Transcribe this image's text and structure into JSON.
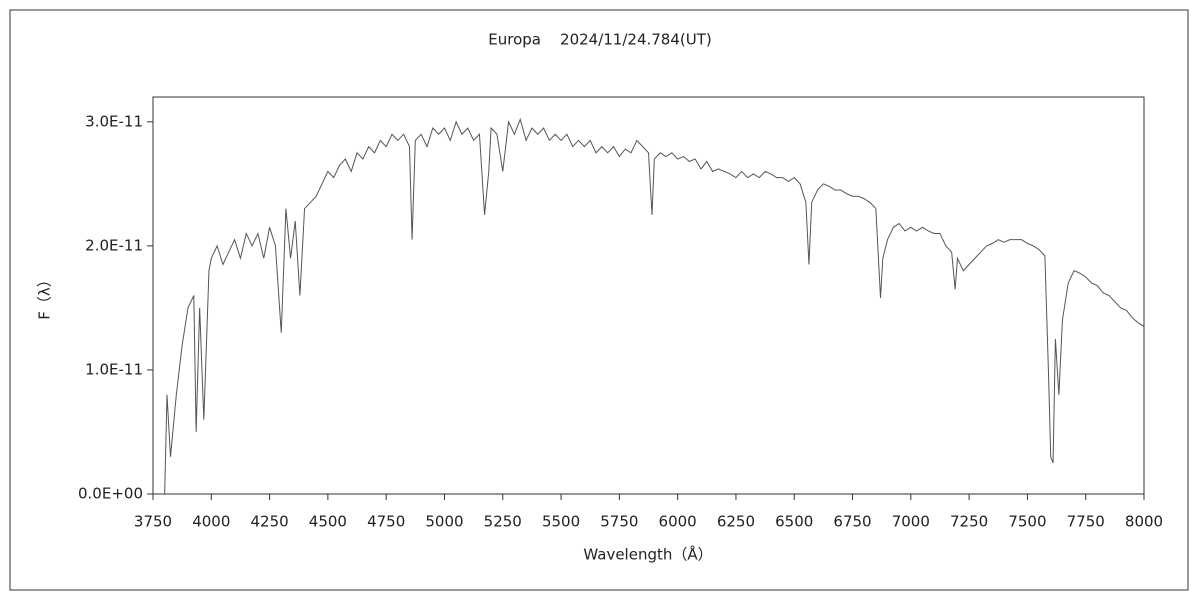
{
  "chart_data": {
    "type": "line",
    "title": "Europa    2024/11/24.784(UT)",
    "x_label": "Wavelength（Å）",
    "y_label": "F（λ）",
    "color": "#555555",
    "xlim": [
      3750,
      8000
    ],
    "ylim": [
      0,
      3.2e-11
    ],
    "xticks": [
      3750,
      4000,
      4250,
      4500,
      4750,
      5000,
      5250,
      5500,
      5750,
      6000,
      6250,
      6500,
      6750,
      7000,
      7250,
      7500,
      7750,
      8000
    ],
    "yticks": [
      {
        "value": 0,
        "label": "0.0E+00"
      },
      {
        "value": 1e-11,
        "label": "1.0E-11"
      },
      {
        "value": 2e-11,
        "label": "2.0E-11"
      },
      {
        "value": 3e-11,
        "label": "3.0E-11"
      }
    ],
    "x": [
      3800,
      3810,
      3825,
      3850,
      3875,
      3900,
      3925,
      3935,
      3950,
      3968,
      3990,
      4000,
      4025,
      4050,
      4075,
      4100,
      4125,
      4150,
      4175,
      4200,
      4225,
      4250,
      4275,
      4300,
      4320,
      4340,
      4360,
      4380,
      4400,
      4425,
      4450,
      4475,
      4500,
      4525,
      4550,
      4575,
      4600,
      4625,
      4650,
      4675,
      4700,
      4725,
      4750,
      4775,
      4800,
      4825,
      4850,
      4861,
      4875,
      4900,
      4925,
      4950,
      4975,
      5000,
      5025,
      5050,
      5075,
      5100,
      5125,
      5150,
      5172,
      5190,
      5200,
      5225,
      5250,
      5275,
      5300,
      5325,
      5350,
      5375,
      5400,
      5425,
      5450,
      5475,
      5500,
      5525,
      5550,
      5575,
      5600,
      5625,
      5650,
      5675,
      5700,
      5725,
      5750,
      5775,
      5800,
      5825,
      5850,
      5875,
      5890,
      5900,
      5925,
      5950,
      5975,
      6000,
      6025,
      6050,
      6075,
      6100,
      6125,
      6150,
      6175,
      6200,
      6225,
      6250,
      6275,
      6300,
      6325,
      6350,
      6375,
      6400,
      6425,
      6450,
      6475,
      6500,
      6525,
      6550,
      6563,
      6575,
      6600,
      6625,
      6650,
      6675,
      6700,
      6725,
      6750,
      6775,
      6800,
      6825,
      6850,
      6870,
      6880,
      6900,
      6925,
      6950,
      6975,
      7000,
      7025,
      7050,
      7075,
      7100,
      7125,
      7150,
      7175,
      7190,
      7200,
      7225,
      7250,
      7275,
      7300,
      7325,
      7350,
      7375,
      7400,
      7425,
      7450,
      7475,
      7500,
      7525,
      7550,
      7575,
      7590,
      7600,
      7610,
      7620,
      7635,
      7650,
      7675,
      7700,
      7725,
      7750,
      7775,
      7800,
      7825,
      7850,
      7875,
      7900,
      7925,
      7950,
      7975,
      8000
    ],
    "values": [
      0,
      8e-12,
      3e-12,
      8e-12,
      1.2e-11,
      1.5e-11,
      1.6e-11,
      5e-12,
      1.5e-11,
      6e-12,
      1.8e-11,
      1.9e-11,
      2e-11,
      1.85e-11,
      1.95e-11,
      2.05e-11,
      1.9e-11,
      2.1e-11,
      2e-11,
      2.1e-11,
      1.9e-11,
      2.15e-11,
      2e-11,
      1.3e-11,
      2.3e-11,
      1.9e-11,
      2.2e-11,
      1.6e-11,
      2.3e-11,
      2.35e-11,
      2.4e-11,
      2.5e-11,
      2.6e-11,
      2.55e-11,
      2.65e-11,
      2.7e-11,
      2.6e-11,
      2.75e-11,
      2.7e-11,
      2.8e-11,
      2.75e-11,
      2.85e-11,
      2.8e-11,
      2.9e-11,
      2.85e-11,
      2.9e-11,
      2.8e-11,
      2.05e-11,
      2.85e-11,
      2.9e-11,
      2.8e-11,
      2.95e-11,
      2.9e-11,
      2.95e-11,
      2.85e-11,
      3e-11,
      2.9e-11,
      2.95e-11,
      2.85e-11,
      2.9e-11,
      2.25e-11,
      2.6e-11,
      2.95e-11,
      2.9e-11,
      2.6e-11,
      3e-11,
      2.9e-11,
      3.02e-11,
      2.85e-11,
      2.95e-11,
      2.9e-11,
      2.95e-11,
      2.85e-11,
      2.9e-11,
      2.85e-11,
      2.9e-11,
      2.8e-11,
      2.85e-11,
      2.8e-11,
      2.85e-11,
      2.75e-11,
      2.8e-11,
      2.75e-11,
      2.8e-11,
      2.72e-11,
      2.78e-11,
      2.75e-11,
      2.85e-11,
      2.8e-11,
      2.75e-11,
      2.25e-11,
      2.7e-11,
      2.75e-11,
      2.72e-11,
      2.75e-11,
      2.7e-11,
      2.72e-11,
      2.68e-11,
      2.7e-11,
      2.62e-11,
      2.68e-11,
      2.6e-11,
      2.62e-11,
      2.6e-11,
      2.58e-11,
      2.55e-11,
      2.6e-11,
      2.55e-11,
      2.58e-11,
      2.55e-11,
      2.6e-11,
      2.58e-11,
      2.55e-11,
      2.55e-11,
      2.52e-11,
      2.55e-11,
      2.5e-11,
      2.35e-11,
      1.85e-11,
      2.35e-11,
      2.45e-11,
      2.5e-11,
      2.48e-11,
      2.45e-11,
      2.45e-11,
      2.42e-11,
      2.4e-11,
      2.4e-11,
      2.38e-11,
      2.35e-11,
      2.3e-11,
      1.58e-11,
      1.9e-11,
      2.05e-11,
      2.15e-11,
      2.18e-11,
      2.12e-11,
      2.15e-11,
      2.12e-11,
      2.15e-11,
      2.12e-11,
      2.1e-11,
      2.1e-11,
      2e-11,
      1.95e-11,
      1.65e-11,
      1.9e-11,
      1.8e-11,
      1.85e-11,
      1.9e-11,
      1.95e-11,
      2e-11,
      2.02e-11,
      2.05e-11,
      2.03e-11,
      2.05e-11,
      2.05e-11,
      2.05e-11,
      2.02e-11,
      2e-11,
      1.97e-11,
      1.92e-11,
      1e-11,
      3e-12,
      2.5e-12,
      1.25e-11,
      8e-12,
      1.4e-11,
      1.7e-11,
      1.8e-11,
      1.78e-11,
      1.75e-11,
      1.7e-11,
      1.68e-11,
      1.62e-11,
      1.6e-11,
      1.55e-11,
      1.5e-11,
      1.48e-11,
      1.42e-11,
      1.38e-11,
      1.35e-11
    ]
  }
}
